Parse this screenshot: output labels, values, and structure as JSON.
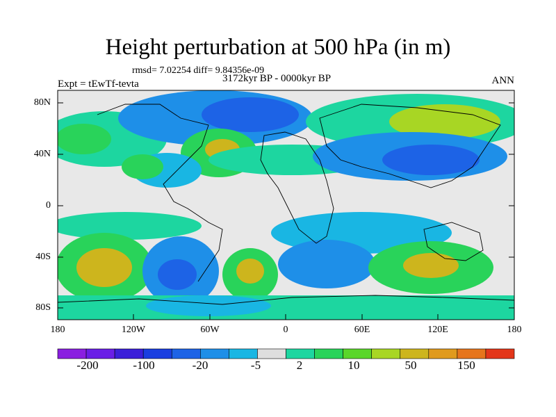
{
  "title": "Height perturbation at 500 hPa (in m)",
  "stats": "rmsd= 7.02254 diff= 9.84356e-09",
  "period": "3172kyr BP - 0000kyr BP",
  "experiment": "Expt = tEwTf-tevta",
  "season": "ANN",
  "lat_labels": [
    "80N",
    "40N",
    "0",
    "40S",
    "80S"
  ],
  "lon_labels": [
    "180",
    "120W",
    "60W",
    "0",
    "60E",
    "120E",
    "180"
  ],
  "colorbar": {
    "labels": [
      "-200",
      "-100",
      "-20",
      "-5",
      "2",
      "10",
      "50",
      "150"
    ],
    "colors": [
      "#8a1fe0",
      "#6a1ee6",
      "#3b1fd9",
      "#1a3ee0",
      "#1d63e6",
      "#1e8fe8",
      "#19b6e3",
      "#dedede",
      "#1dd6a0",
      "#29d35a",
      "#5ad62a",
      "#a8d624",
      "#cdb51d",
      "#e09a1d",
      "#e6751c",
      "#e3361a"
    ]
  }
}
